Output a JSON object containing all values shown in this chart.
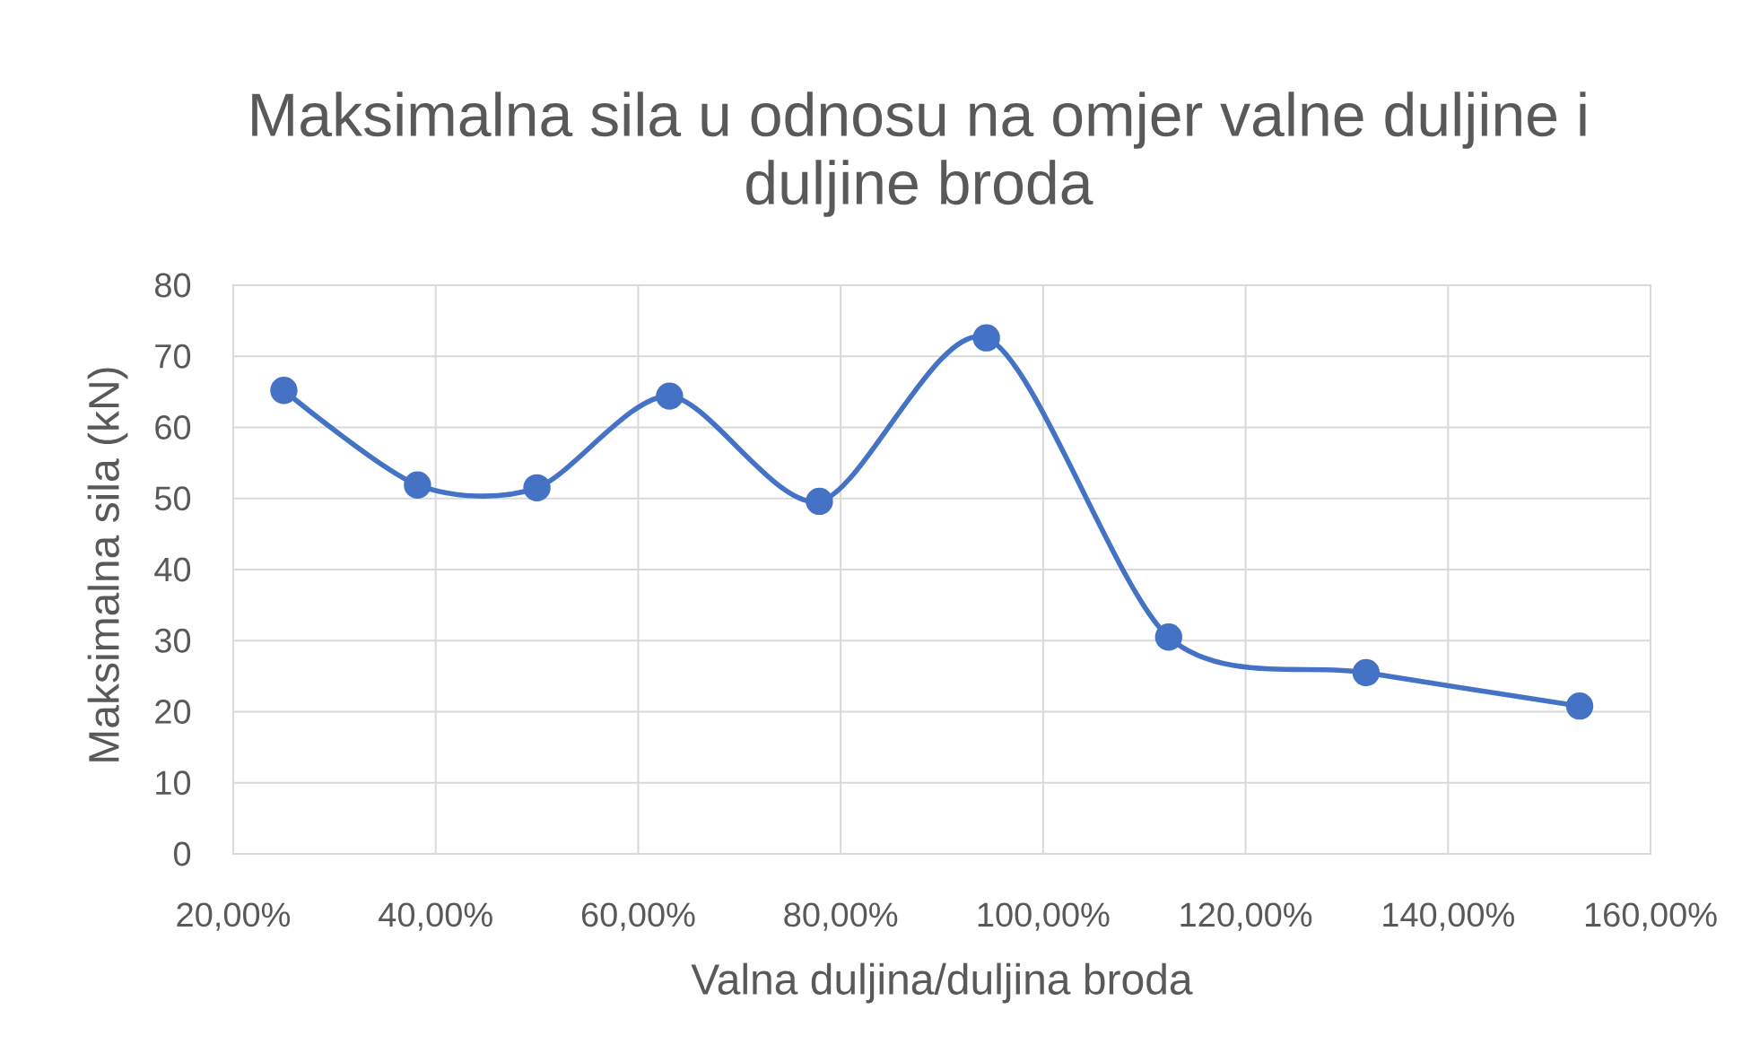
{
  "chart_data": {
    "type": "line",
    "title": "Maksimalna sila u odnosu na omjer valne duljine i duljine broda",
    "xlabel": "Valna duljina/duljina broda",
    "ylabel": "Maksimalna sila (kN)",
    "x": [
      25,
      38.2,
      50,
      63.1,
      77.9,
      94.4,
      112.4,
      131.9,
      153
    ],
    "series": [
      {
        "color": "#4472c4",
        "values": [
          65.2,
          51.9,
          51.5,
          64.4,
          49.6,
          72.6,
          30.5,
          25.5,
          20.8
        ]
      }
    ],
    "xlim": [
      20,
      160
    ],
    "xticks": [
      {
        "value": 20,
        "label": "20,00%"
      },
      {
        "value": 40,
        "label": "40,00%"
      },
      {
        "value": 60,
        "label": "60,00%"
      },
      {
        "value": 80,
        "label": "80,00%"
      },
      {
        "value": 100,
        "label": "100,00%"
      },
      {
        "value": 120,
        "label": "120,00%"
      },
      {
        "value": 140,
        "label": "140,00%"
      },
      {
        "value": 160,
        "label": "160,00%"
      }
    ],
    "ylim": [
      0,
      80
    ],
    "yticks": [
      0,
      10,
      20,
      30,
      40,
      50,
      60,
      70,
      80
    ],
    "grid": true,
    "marker": "circle",
    "line_style": "solid"
  }
}
